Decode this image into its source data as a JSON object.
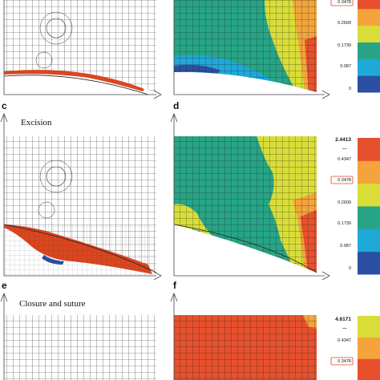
{
  "panels": [
    {
      "letter": "c"
    },
    {
      "letter": "d"
    },
    {
      "letter": "e"
    },
    {
      "letter": "f"
    }
  ],
  "captions": {
    "excision": "Excision",
    "closure": "Closure and suture"
  },
  "legends": [
    {
      "name": "legend-top",
      "top_label": "",
      "dots": "",
      "ticks": [
        "0.3478",
        "0.2609",
        "0.1739",
        "0.087",
        "0"
      ],
      "boxed": "0.3478",
      "colors": [
        "#2b4fa3",
        "#1fa8d8",
        "#27a486",
        "#d9dd38",
        "#f4a43a",
        "#e7502d"
      ]
    },
    {
      "name": "legend-mid",
      "top_label": "2.4413",
      "dots": "...",
      "ticks": [
        "0.4347",
        "0.3478",
        "0.2609",
        "0.1739",
        "0.087",
        "0"
      ],
      "boxed": "0.3478",
      "colors": [
        "#2b4fa3",
        "#1fa8d8",
        "#27a486",
        "#d9dd38",
        "#f4a43a",
        "#e7502d"
      ]
    },
    {
      "name": "legend-bottom",
      "top_label": "4.6171",
      "dots": "...",
      "ticks": [
        "0.4347",
        "0.3478"
      ],
      "boxed": "0.3478",
      "colors": [
        "#e7502d",
        "#f4a43a",
        "#d9dd38"
      ]
    }
  ],
  "colors": {
    "mesh_line": "#333333",
    "wound_red": "#d9461f",
    "wound_blue": "#2b4fa3",
    "green": "#27a486",
    "yellow": "#d9dd38",
    "orange": "#f4a43a",
    "red": "#e7502d",
    "cyan": "#1fa8d8",
    "boxed_outline": "#e0402a"
  }
}
